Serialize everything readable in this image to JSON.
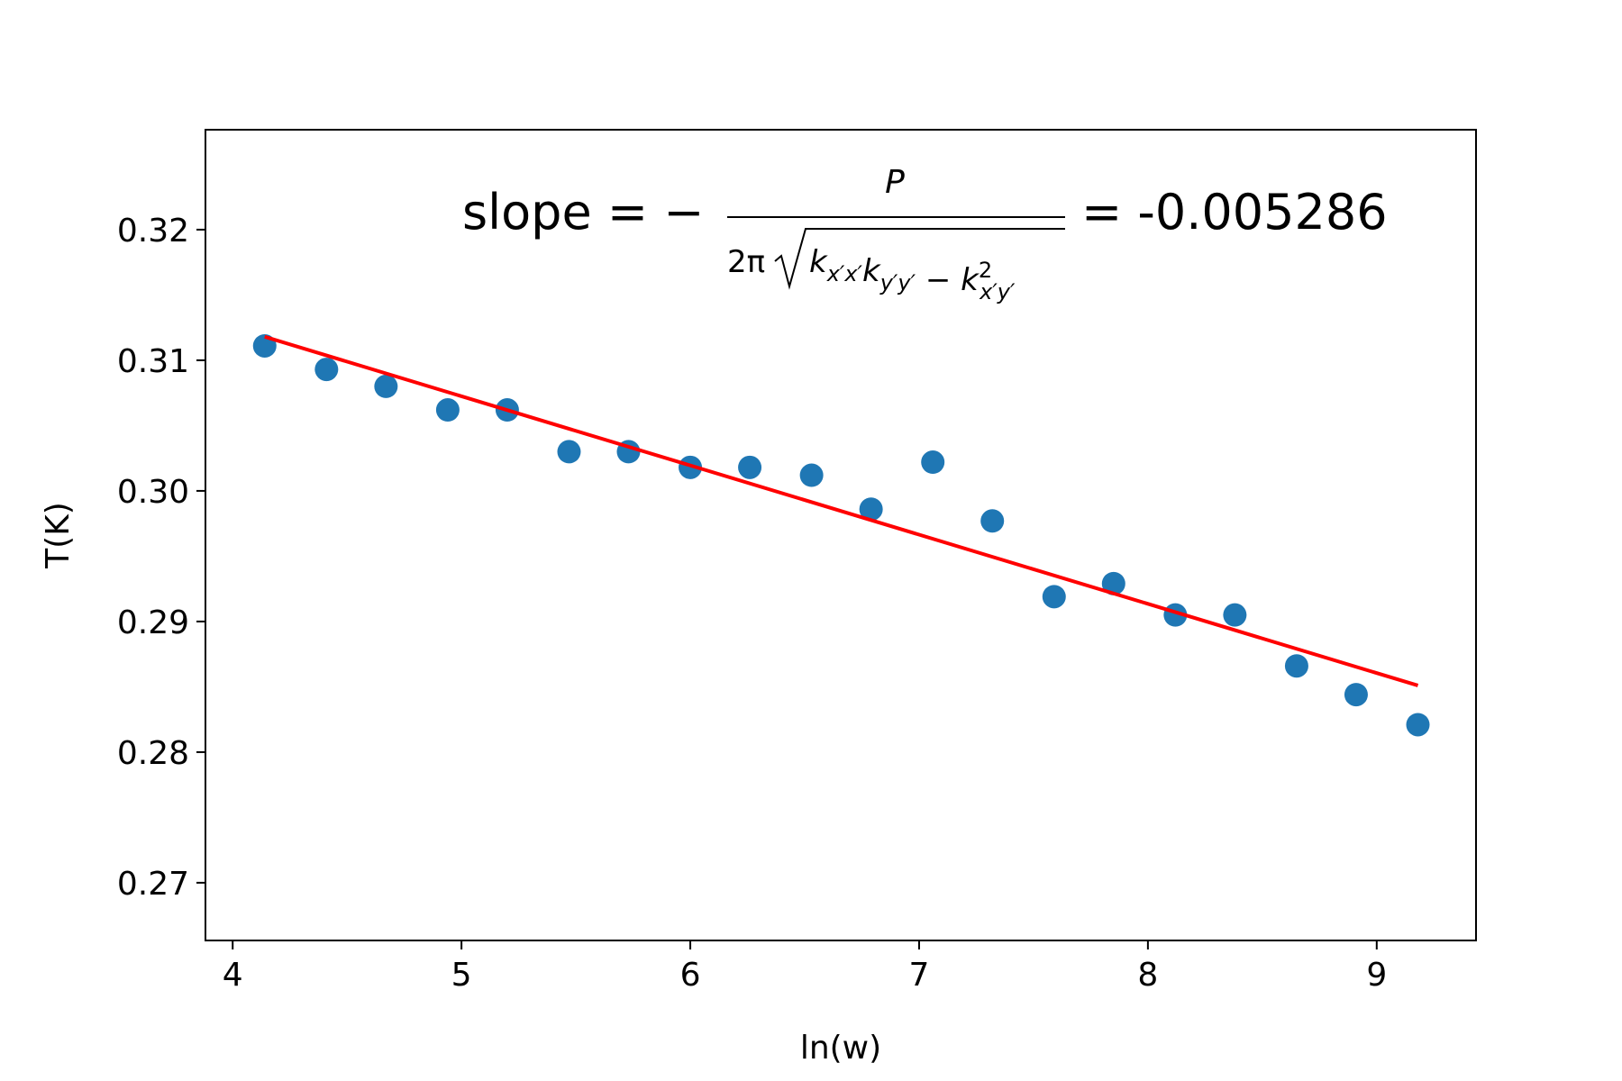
{
  "chart_data": {
    "type": "scatter",
    "x_label": "ln(w)",
    "y_label": "T(K)",
    "xlim": [
      3.881,
      9.434
    ],
    "ylim": [
      0.26558,
      0.32765
    ],
    "xticks": [
      4,
      5,
      6,
      7,
      8,
      9
    ],
    "yticks": [
      0.27,
      0.28,
      0.29,
      {
        "value": 0.3,
        "label": "0.30"
      },
      0.31,
      0.32
    ],
    "grid": false,
    "series": [
      {
        "type": "scatter",
        "color": "#1f77b4",
        "x": [
          4.14,
          4.41,
          4.67,
          4.94,
          5.2,
          5.47,
          5.73,
          6.0,
          6.26,
          6.53,
          6.79,
          7.06,
          7.32,
          7.59,
          7.85,
          8.12,
          8.38,
          8.65,
          8.91,
          9.18
        ],
        "values": [
          0.3111,
          0.3093,
          0.308,
          0.3062,
          0.3062,
          0.303,
          0.303,
          0.3018,
          0.3018,
          0.3012,
          0.2986,
          0.3022,
          0.2977,
          0.2919,
          0.2929,
          0.2905,
          0.2905,
          0.2866,
          0.2844,
          0.2821
        ]
      },
      {
        "type": "line",
        "color": "#ff0000",
        "x": [
          4.14,
          9.18
        ],
        "values": [
          0.3118,
          0.2851
        ]
      }
    ],
    "annotation": {
      "lhs": "slope = −",
      "numerator": "P",
      "denominator_prefix": "2π",
      "radicand": [
        {
          "base": "k",
          "sub": "x′x′"
        },
        {
          "base": "k",
          "sub": "y′y′"
        },
        {
          "text": " − "
        },
        {
          "base": "k",
          "sup": "2",
          "sub": "x′y′"
        }
      ],
      "rhs": "= -0.005286"
    }
  }
}
